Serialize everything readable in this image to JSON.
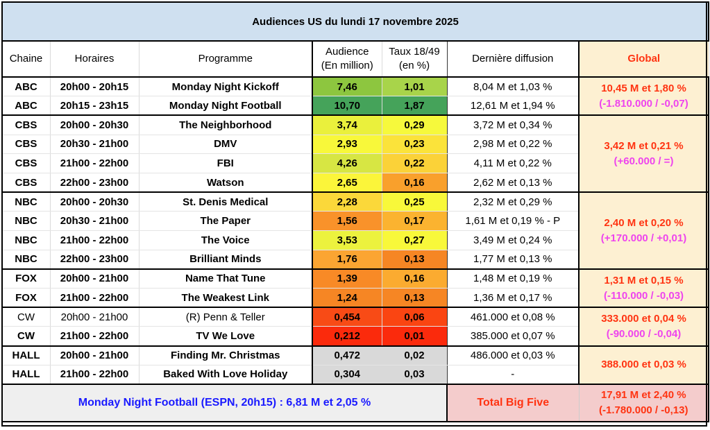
{
  "title": "Audiences US du lundi 17 novembre 2025",
  "headers": {
    "chaine": "Chaine",
    "horaires": "Horaires",
    "programme": "Programme",
    "audience_l1": "Audience",
    "audience_l2": "(En million)",
    "taux_l1": "Taux 18/49",
    "taux_l2": "(en %)",
    "derniere": "Dernière diffusion",
    "global": "Global"
  },
  "rows": [
    {
      "chaine": "ABC",
      "horaires": "20h00 - 20h15",
      "programme": "Monday Night Kickoff",
      "audience": "7,46",
      "taux": "1,01",
      "derniere": "8,04 M et 1,03 %",
      "aud_color": "#8dc63f",
      "taux_color": "#a8d44a",
      "bold": true
    },
    {
      "chaine": "ABC",
      "horaires": "20h15 - 23h15",
      "programme": "Monday Night Football",
      "audience": "10,70",
      "taux": "1,87",
      "derniere": "12,61 M et 1,94 %",
      "aud_color": "#45a35a",
      "taux_color": "#45a35a",
      "bold": true
    },
    {
      "chaine": "CBS",
      "horaires": "20h00 - 20h30",
      "programme": "The Neighborhood",
      "audience": "3,74",
      "taux": "0,29",
      "derniere": "3,72 M et 0,34 %",
      "aud_color": "#eaf03c",
      "taux_color": "#f6f93c",
      "bold": true
    },
    {
      "chaine": "CBS",
      "horaires": "20h30 - 21h00",
      "programme": "DMV",
      "audience": "2,93",
      "taux": "0,23",
      "derniere": "2,98 M et 0,22 %",
      "aud_color": "#f8f83a",
      "taux_color": "#fbe33a",
      "bold": true
    },
    {
      "chaine": "CBS",
      "horaires": "21h00 - 22h00",
      "programme": "FBI",
      "audience": "4,26",
      "taux": "0,22",
      "derniere": "4,11 M et 0,22 %",
      "aud_color": "#d7e643",
      "taux_color": "#fbd238",
      "bold": true
    },
    {
      "chaine": "CBS",
      "horaires": "22h00 - 23h00",
      "programme": "Watson",
      "audience": "2,65",
      "taux": "0,16",
      "derniere": "2,62 M et 0,13 %",
      "aud_color": "#fbf53a",
      "taux_color": "#f9a02c",
      "bold": true
    },
    {
      "chaine": "NBC",
      "horaires": "20h00 - 20h30",
      "programme": "St. Denis Medical",
      "audience": "2,28",
      "taux": "0,25",
      "derniere": "2,32 M et 0,29 %",
      "aud_color": "#fbd83a",
      "taux_color": "#f8f83a",
      "bold": true
    },
    {
      "chaine": "NBC",
      "horaires": "20h30 - 21h00",
      "programme": "The Paper",
      "audience": "1,56",
      "taux": "0,17",
      "derniere": "1,61 M et 0,19 % - P",
      "aud_color": "#f9922a",
      "taux_color": "#fbb330",
      "bold": true
    },
    {
      "chaine": "NBC",
      "horaires": "21h00 - 22h00",
      "programme": "The Voice",
      "audience": "3,53",
      "taux": "0,27",
      "derniere": "3,49 M et 0,24 %",
      "aud_color": "#ecf23e",
      "taux_color": "#f8f83a",
      "bold": true
    },
    {
      "chaine": "NBC",
      "horaires": "22h00 - 23h00",
      "programme": "Brilliant Minds",
      "audience": "1,76",
      "taux": "0,13",
      "derniere": "1,77 M et 0,13 %",
      "aud_color": "#fba532",
      "taux_color": "#f68624",
      "bold": true
    },
    {
      "chaine": "FOX",
      "horaires": "20h00 - 21h00",
      "programme": "Name That Tune",
      "audience": "1,39",
      "taux": "0,16",
      "derniere": "1,48 M et 0,19 %",
      "aud_color": "#f88a26",
      "taux_color": "#fbab30",
      "bold": true
    },
    {
      "chaine": "FOX",
      "horaires": "21h00 - 22h00",
      "programme": "The Weakest Link",
      "audience": "1,24",
      "taux": "0,13",
      "derniere": "1,36 M et 0,17 %",
      "aud_color": "#f68624",
      "taux_color": "#f68624",
      "bold": true
    },
    {
      "chaine": "CW",
      "horaires": "20h00 - 21h00",
      "programme": "(R) Penn & Teller",
      "audience": "0,454",
      "taux": "0,06",
      "derniere": "461.000 et 0,08 %",
      "aud_color": "#f84b16",
      "taux_color": "#fa4512",
      "bold": false
    },
    {
      "chaine": "CW",
      "horaires": "21h00 - 22h00",
      "programme": "TV We Love",
      "audience": "0,212",
      "taux": "0,01",
      "derniere": "385.000 et 0,07 %",
      "aud_color": "#fb2a0c",
      "taux_color": "#fb2a0c",
      "bold": true
    },
    {
      "chaine": "HALL",
      "horaires": "20h00 - 21h00",
      "programme": "Finding Mr. Christmas",
      "audience": "0,472",
      "taux": "0,02",
      "derniere": "486.000 et 0,03 %",
      "aud_color": "#d9d9d9",
      "taux_color": "#d9d9d9",
      "bold": true
    },
    {
      "chaine": "HALL",
      "horaires": "21h00 - 22h00",
      "programme": "Baked With Love Holiday",
      "audience": "0,304",
      "taux": "0,03",
      "derniere": "-",
      "aud_color": "#d9d9d9",
      "taux_color": "#d9d9d9",
      "bold": true
    }
  ],
  "globals": [
    {
      "network": "ABC",
      "main": "10,45 M et 1,80 %",
      "diff": "(-1.810.000 / -0,07)"
    },
    {
      "network": "CBS",
      "main": "3,42 M et 0,21 %",
      "diff": "(+60.000 / =)"
    },
    {
      "network": "NBC",
      "main": "2,40 M et 0,20 %",
      "diff": "(+170.000 / +0,01)"
    },
    {
      "network": "FOX",
      "main": "1,31 M et 0,15 %",
      "diff": "(-110.000 / -0,03)"
    },
    {
      "network": "CW",
      "main": "333.000 et 0,04 %",
      "diff": "(-90.000 / -0,04)"
    },
    {
      "network": "HALL",
      "main": "388.000 et 0,03 %",
      "diff": ""
    }
  ],
  "footer": {
    "espn": "Monday Night Football (ESPN, 20h15) : 6,81 M et 2,05 %",
    "total_label": "Total Big Five",
    "total_main": "17,91 M et 2,40 %",
    "total_diff": "(-1.780.000 / -0,13)"
  }
}
